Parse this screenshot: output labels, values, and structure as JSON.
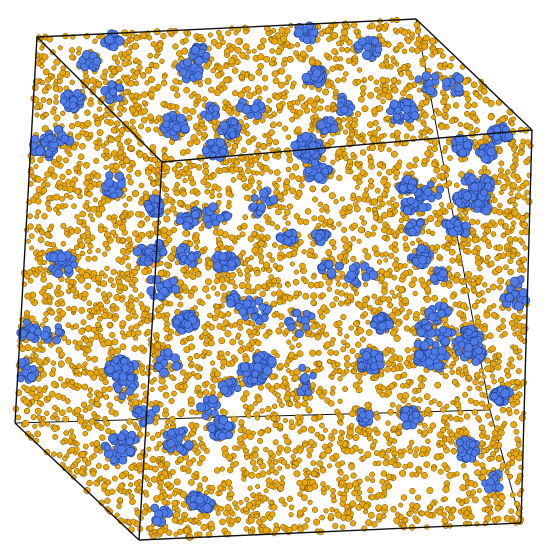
{
  "scene": {
    "background": "#ffffff",
    "edge_color": "#111111",
    "colors": {
      "matrix_particle": "#e8a70c",
      "matrix_particle_edge": "#6b4a00",
      "cluster_particle": "#4f7be6",
      "cluster_particle_edge": "#1f3d8f"
    },
    "particle_types": [
      "matrix_particle",
      "cluster_particle"
    ]
  }
}
